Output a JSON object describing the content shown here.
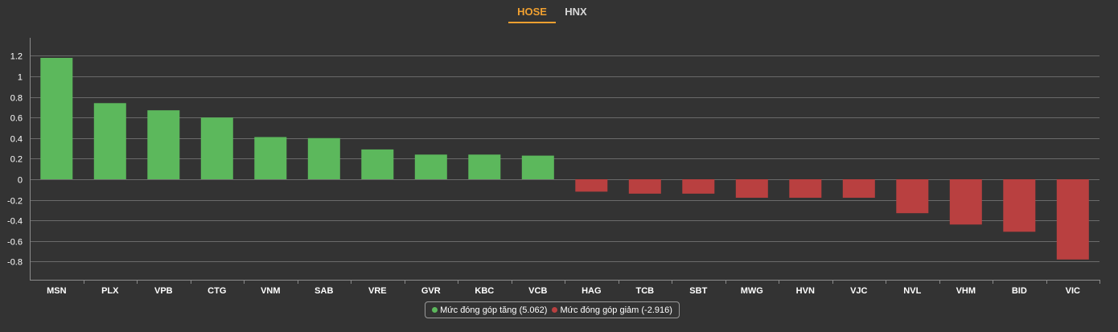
{
  "tabs": [
    {
      "label": "HOSE",
      "active": true
    },
    {
      "label": "HNX",
      "active": false
    }
  ],
  "colors": {
    "accent": "#f0a030",
    "positive": "#5cb85c",
    "negative": "#b94040",
    "grid": "#6a6a6a",
    "background": "#333333"
  },
  "legend": {
    "positive_label": "Mức đóng góp tăng (5.062)",
    "negative_label": "Mức đóng góp giảm (-2.916)"
  },
  "chart_data": {
    "type": "bar",
    "categories": [
      "MSN",
      "PLX",
      "VPB",
      "CTG",
      "VNM",
      "SAB",
      "VRE",
      "GVR",
      "KBC",
      "VCB",
      "HAG",
      "TCB",
      "SBT",
      "MWG",
      "HVN",
      "VJC",
      "NVL",
      "VHM",
      "BID",
      "VIC"
    ],
    "values": [
      1.18,
      0.74,
      0.67,
      0.6,
      0.41,
      0.4,
      0.29,
      0.24,
      0.24,
      0.23,
      -0.12,
      -0.14,
      -0.14,
      -0.18,
      -0.18,
      -0.18,
      -0.33,
      -0.44,
      -0.51,
      -0.78
    ],
    "series": [
      {
        "name": "Mức đóng góp tăng (5.062)",
        "sign": "positive"
      },
      {
        "name": "Mức đóng góp giảm (-2.916)",
        "sign": "negative"
      }
    ],
    "yticks": [
      "1.2",
      "1",
      "0.8",
      "0.6",
      "0.4",
      "0.2",
      "0",
      "-0.2",
      "-0.4",
      "-0.6",
      "-0.8"
    ],
    "ylim": [
      -0.95,
      1.35
    ],
    "grid": true,
    "legend_position": "bottom-center",
    "title": "",
    "xlabel": "",
    "ylabel": ""
  }
}
